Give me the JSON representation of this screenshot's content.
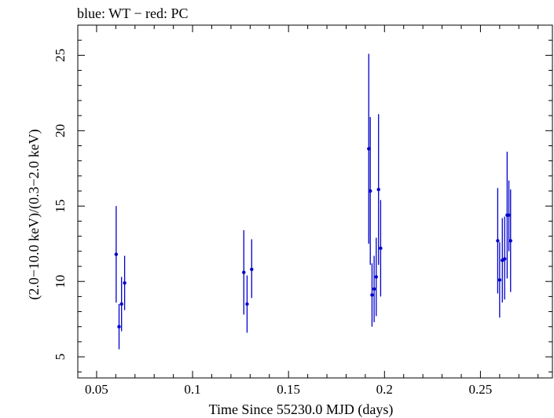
{
  "chart_data": {
    "type": "scatter",
    "title": "blue: WT − red: PC",
    "xlabel": "Time Since 55230.0 MJD (days)",
    "ylabel": "(2.0−10.0 keV)/(0.3−2.0 keV)",
    "xlim": [
      0.0402,
      0.2875
    ],
    "ylim": [
      3.6,
      27.0
    ],
    "x_ticks": [
      {
        "value": 0.05,
        "label": "0.05"
      },
      {
        "value": 0.1,
        "label": "0.1"
      },
      {
        "value": 0.15,
        "label": "0.15"
      },
      {
        "value": 0.2,
        "label": "0.2"
      },
      {
        "value": 0.25,
        "label": "0.25"
      }
    ],
    "y_ticks": [
      {
        "value": 5,
        "label": "5"
      },
      {
        "value": 10,
        "label": "10"
      },
      {
        "value": 15,
        "label": "15"
      },
      {
        "value": 20,
        "label": "20"
      },
      {
        "value": 25,
        "label": "25"
      }
    ],
    "grid": false,
    "series": [
      {
        "name": "WT",
        "color": "#0000cc",
        "points": [
          {
            "x": 0.0602,
            "y": 11.8,
            "ylo": 8.6,
            "yhi": 15.0
          },
          {
            "x": 0.0617,
            "y": 7.0,
            "ylo": 5.5,
            "yhi": 8.5
          },
          {
            "x": 0.063,
            "y": 8.5,
            "ylo": 6.7,
            "yhi": 10.3
          },
          {
            "x": 0.0646,
            "y": 9.9,
            "ylo": 8.1,
            "yhi": 11.7
          },
          {
            "x": 0.1267,
            "y": 10.6,
            "ylo": 7.8,
            "yhi": 13.4
          },
          {
            "x": 0.1284,
            "y": 8.5,
            "ylo": 6.6,
            "yhi": 10.4
          },
          {
            "x": 0.1308,
            "y": 10.8,
            "ylo": 8.9,
            "yhi": 12.8
          },
          {
            "x": 0.1918,
            "y": 18.8,
            "ylo": 12.5,
            "yhi": 25.1
          },
          {
            "x": 0.1926,
            "y": 16.0,
            "ylo": 11.1,
            "yhi": 20.9
          },
          {
            "x": 0.1935,
            "y": 9.1,
            "ylo": 7.0,
            "yhi": 11.2
          },
          {
            "x": 0.1946,
            "y": 9.5,
            "ylo": 7.3,
            "yhi": 11.7
          },
          {
            "x": 0.1957,
            "y": 10.3,
            "ylo": 7.7,
            "yhi": 12.9
          },
          {
            "x": 0.1969,
            "y": 16.1,
            "ylo": 11.1,
            "yhi": 21.1
          },
          {
            "x": 0.198,
            "y": 12.2,
            "ylo": 9.0,
            "yhi": 15.4
          },
          {
            "x": 0.259,
            "y": 12.7,
            "ylo": 9.2,
            "yhi": 16.2
          },
          {
            "x": 0.26,
            "y": 10.1,
            "ylo": 7.6,
            "yhi": 12.6
          },
          {
            "x": 0.2614,
            "y": 11.4,
            "ylo": 8.6,
            "yhi": 14.2
          },
          {
            "x": 0.2626,
            "y": 11.5,
            "ylo": 8.8,
            "yhi": 14.3
          },
          {
            "x": 0.2639,
            "y": 14.4,
            "ylo": 10.2,
            "yhi": 18.6
          },
          {
            "x": 0.2648,
            "y": 14.4,
            "ylo": 12.0,
            "yhi": 16.7
          },
          {
            "x": 0.2657,
            "y": 12.7,
            "ylo": 9.3,
            "yhi": 16.1
          }
        ]
      }
    ]
  }
}
